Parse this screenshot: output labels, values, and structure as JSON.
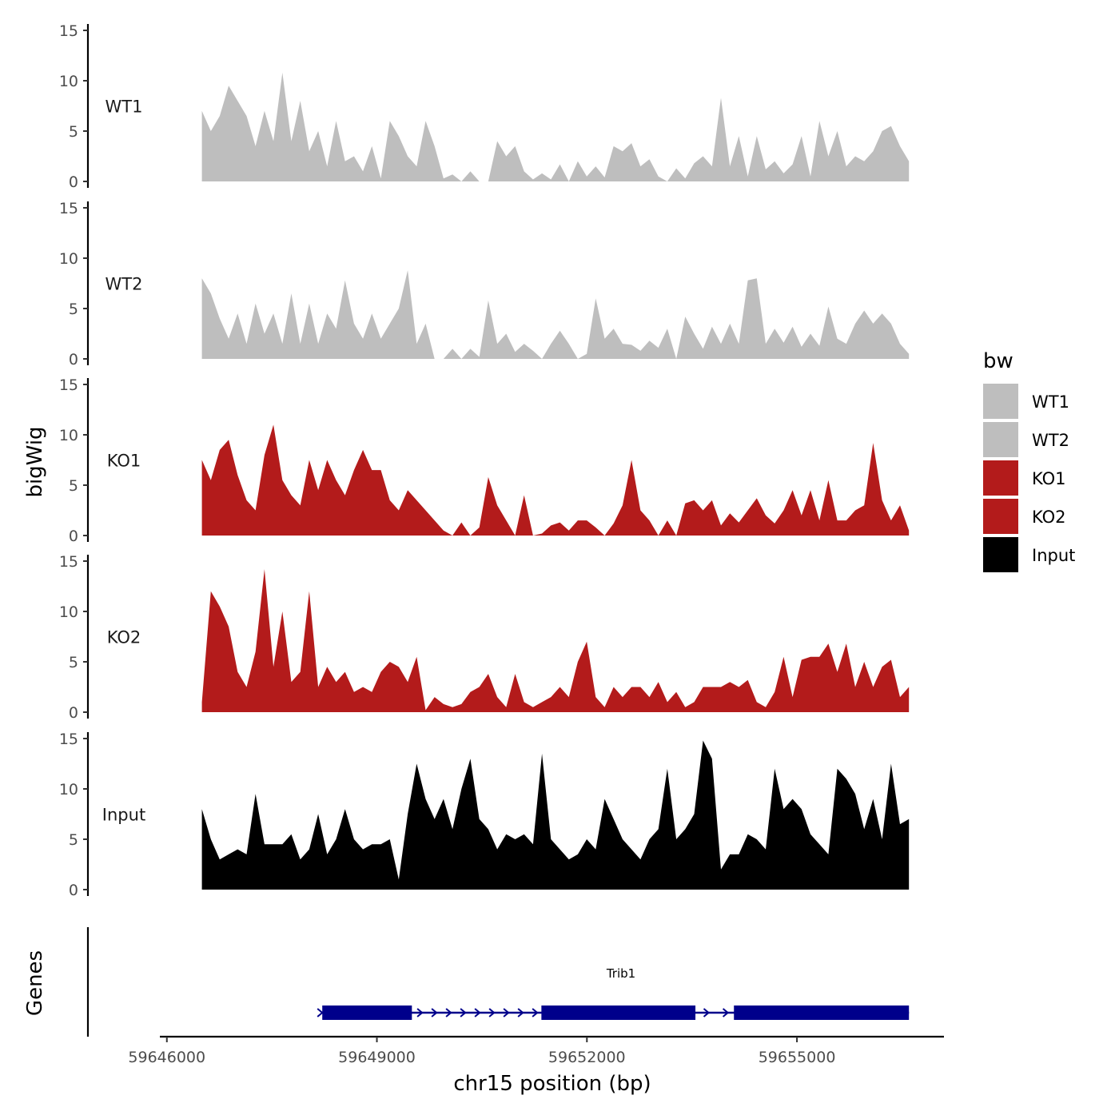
{
  "chart_data": {
    "type": "area",
    "xlabel": "chr15 position (bp)",
    "ylabel": "bigWig",
    "genes_panel_label": "Genes",
    "xlim": [
      59645900,
      59657100
    ],
    "x_ticks": [
      59646000,
      59649000,
      59652000,
      59655000
    ],
    "x_tick_labels": [
      "59646000",
      "59649000",
      "59652000",
      "59655000"
    ],
    "ylim": [
      0,
      15
    ],
    "y_ticks": [
      0,
      5,
      10,
      15
    ],
    "y_tick_labels": [
      "0",
      "5",
      "10",
      "15"
    ],
    "x_start": 59646500,
    "x_end": 59656600,
    "series": [
      {
        "name": "WT1",
        "color": "#bebebe",
        "values": [
          7,
          5,
          6.5,
          9.5,
          8,
          6.5,
          3.5,
          7,
          4,
          10.8,
          4,
          8,
          3,
          5,
          1.5,
          6,
          2,
          2.5,
          1,
          3.5,
          0.3,
          6,
          4.5,
          2.5,
          1.5,
          6,
          3.5,
          0.3,
          0.7,
          0,
          1,
          0,
          0,
          4,
          2.5,
          3.5,
          1,
          0.2,
          0.8,
          0.2,
          1.7,
          0,
          2,
          0.5,
          1.5,
          0.4,
          3.5,
          3,
          3.8,
          1.5,
          2.2,
          0.5,
          0,
          1.3,
          0.3,
          1.8,
          2.5,
          1.5,
          8.3,
          1.5,
          4.5,
          0.5,
          4.5,
          1.2,
          2,
          0.8,
          1.7,
          4.5,
          0.5,
          6,
          2.5,
          5,
          1.5,
          2.5,
          2,
          3,
          5,
          5.5,
          3.5,
          2
        ]
      },
      {
        "name": "WT2",
        "color": "#bebebe",
        "values": [
          8,
          6.5,
          4,
          2,
          4.5,
          1.5,
          5.5,
          2.5,
          4.5,
          1.5,
          6.5,
          1.5,
          5.5,
          1.5,
          4.5,
          3,
          7.8,
          3.5,
          2,
          4.5,
          2,
          3.5,
          5,
          8.8,
          1.5,
          3.5,
          0,
          0,
          1,
          0,
          1,
          0.2,
          5.8,
          1.5,
          2.5,
          0.7,
          1.5,
          0.8,
          0,
          1.5,
          2.8,
          1.5,
          0,
          0.5,
          6,
          2,
          3,
          1.5,
          1.4,
          0.8,
          1.8,
          1.1,
          3,
          0,
          4.2,
          2.5,
          1,
          3.2,
          1.5,
          3.5,
          1.5,
          7.8,
          8,
          1.5,
          3,
          1.6,
          3.2,
          1.2,
          2.5,
          1.3,
          5.2,
          2,
          1.5,
          3.5,
          4.8,
          3.5,
          4.5,
          3.5,
          1.5,
          0.5
        ]
      },
      {
        "name": "KO1",
        "color": "#b31b1b",
        "values": [
          7.5,
          5.5,
          8.5,
          9.5,
          6,
          3.5,
          2.5,
          8,
          11,
          5.5,
          4,
          3,
          7.5,
          4.5,
          7.5,
          5.5,
          4,
          6.5,
          8.5,
          6.5,
          6.5,
          3.5,
          2.5,
          4.5,
          3.5,
          2.5,
          1.5,
          0.5,
          0,
          1.3,
          0,
          0.8,
          5.8,
          3,
          1.5,
          0,
          4,
          0,
          0.2,
          1,
          1.3,
          0.5,
          1.5,
          1.5,
          0.8,
          0,
          1.2,
          3,
          7.5,
          2.5,
          1.5,
          0,
          1.5,
          0,
          3.2,
          3.5,
          2.5,
          3.5,
          1,
          2.2,
          1.3,
          2.5,
          3.7,
          2,
          1.2,
          2.5,
          4.5,
          2,
          4.5,
          1.5,
          5.5,
          1.5,
          1.5,
          2.5,
          3,
          9.2,
          3.5,
          1.5,
          3,
          0.5
        ]
      },
      {
        "name": "KO2",
        "color": "#b31b1b",
        "values": [
          1,
          12,
          10.5,
          8.5,
          4,
          2.5,
          6,
          14.2,
          4.5,
          10,
          3,
          4,
          12,
          2.5,
          4.5,
          3,
          4,
          2,
          2.5,
          2,
          4,
          5,
          4.5,
          3,
          5.5,
          0.2,
          1.5,
          0.8,
          0.5,
          0.8,
          2,
          2.5,
          3.8,
          1.5,
          0.5,
          3.8,
          1,
          0.5,
          1,
          1.5,
          2.5,
          1.5,
          5,
          7,
          1.5,
          0.5,
          2.5,
          1.5,
          2.5,
          2.5,
          1.5,
          3,
          1,
          2,
          0.5,
          1,
          2.5,
          2.5,
          2.5,
          3,
          2.5,
          3.2,
          1,
          0.5,
          2,
          5.5,
          1.5,
          5.2,
          5.5,
          5.5,
          6.8,
          4,
          6.8,
          2.5,
          5,
          2.5,
          4.5,
          5.2,
          1.5,
          2.5
        ]
      },
      {
        "name": "Input",
        "color": "#000000",
        "values": [
          8,
          5,
          3,
          3.5,
          4,
          3.5,
          9.5,
          4.5,
          4.5,
          4.5,
          5.5,
          3,
          4,
          7.5,
          3.5,
          5,
          8,
          5,
          4,
          4.5,
          4.5,
          5,
          1,
          7.5,
          12.5,
          9,
          7,
          9,
          6,
          10,
          13,
          7,
          6,
          4,
          5.5,
          5,
          5.5,
          4.5,
          13.5,
          5,
          4,
          3,
          3.5,
          5,
          4,
          9,
          7,
          5,
          4,
          3,
          5,
          6,
          12,
          5,
          6,
          7.5,
          14.8,
          13,
          2,
          3.5,
          3.5,
          5.5,
          5,
          4,
          12,
          8,
          9,
          8,
          5.5,
          4.5,
          3.5,
          12,
          11,
          9.5,
          6,
          9,
          5,
          12.5,
          6.5,
          7
        ]
      }
    ],
    "gene": {
      "name": "Trib1",
      "color": "#00008b",
      "start": 59648220,
      "end": 59656600,
      "strand": "+",
      "exons": [
        [
          59648220,
          59649500
        ],
        [
          59651350,
          59653550
        ],
        [
          59654100,
          59656600
        ]
      ]
    }
  }
}
